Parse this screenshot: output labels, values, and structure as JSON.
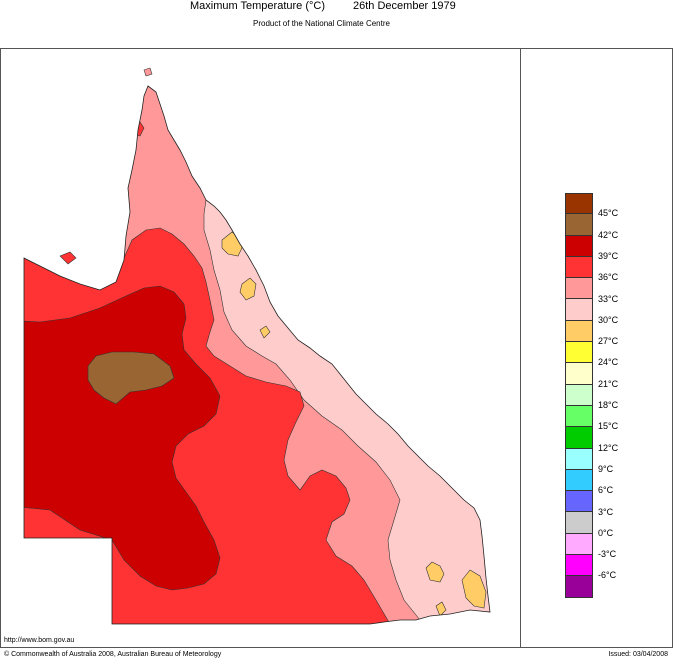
{
  "header": {
    "title": "Maximum Temperature (°C)",
    "date": "26th December 1979",
    "subtitle": "Product of the National Climate Centre"
  },
  "legend": {
    "colors": [
      "#993300",
      "#996633",
      "#cc0000",
      "#ff3333",
      "#ff9999",
      "#ffcccc",
      "#ffcc66",
      "#ffff33",
      "#ffffcc",
      "#ccffcc",
      "#66ff66",
      "#00cc00",
      "#99ffff",
      "#33ccff",
      "#6666ff",
      "#cccccc",
      "#ffaaff",
      "#ff00ff",
      "#990099"
    ],
    "labels": [
      "45°C",
      "42°C",
      "39°C",
      "36°C",
      "33°C",
      "30°C",
      "27°C",
      "24°C",
      "21°C",
      "18°C",
      "15°C",
      "12°C",
      "9°C",
      "6°C",
      "3°C",
      "0°C",
      "-3°C",
      "-6°C"
    ]
  },
  "map": {
    "region": "Queensland",
    "zone_colors": {
      "42": "#996633",
      "39": "#cc0000",
      "36": "#ff3333",
      "33": "#ff9999",
      "30": "#ffcccc",
      "27": "#ffcc66"
    }
  },
  "footer": {
    "url": "http://www.bom.gov.au",
    "copyright": "© Commonwealth of Australia 2008, Australian Bureau of Meteorology",
    "issued": "Issued: 03/04/2008"
  }
}
